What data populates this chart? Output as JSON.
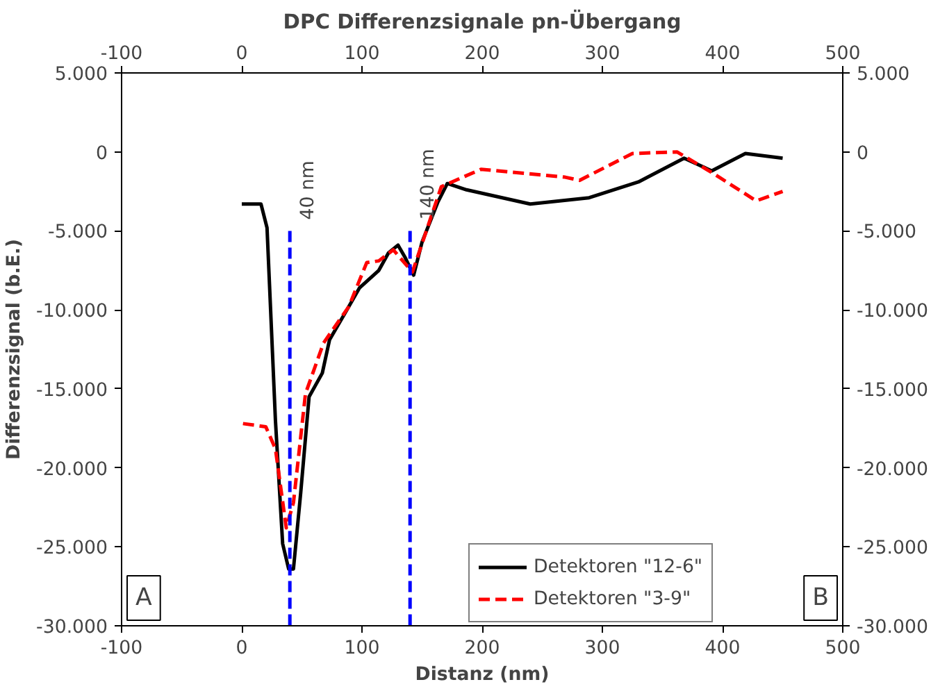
{
  "chart_data": {
    "type": "line",
    "title": "DPC Differenzsignale pn-Übergang",
    "xlabel": "Distanz (nm)",
    "ylabel": "Differenzsignal (b.E.)",
    "xlim": [
      -100,
      500
    ],
    "xticks": [
      -100,
      0,
      100,
      200,
      300,
      400,
      500
    ],
    "x2lim": [
      -100,
      500
    ],
    "x2ticks": [
      -100,
      0,
      100,
      200,
      300,
      400,
      500
    ],
    "ylim": [
      -30000,
      5000
    ],
    "yticks": [
      {
        "value": 5000,
        "label": "5.000"
      },
      {
        "value": 0,
        "label": "0"
      },
      {
        "value": -5000,
        "label": "-5.000"
      },
      {
        "value": -10000,
        "label": "-10.000"
      },
      {
        "value": -15000,
        "label": "-15.000"
      },
      {
        "value": -20000,
        "label": "-20.000"
      },
      {
        "value": -25000,
        "label": "-25.000"
      },
      {
        "value": -30000,
        "label": "-30.000"
      }
    ],
    "y2lim": [
      -30000,
      5000
    ],
    "y2ticks": [
      {
        "value": 5000,
        "label": "5.000"
      },
      {
        "value": 0,
        "label": "0"
      },
      {
        "value": -5000,
        "label": "-5.000"
      },
      {
        "value": -10000,
        "label": "-10.000"
      },
      {
        "value": -15000,
        "label": "-15.000"
      },
      {
        "value": -20000,
        "label": "-20.000"
      },
      {
        "value": -25000,
        "label": "-25.000"
      },
      {
        "value": -30000,
        "label": "-30.000"
      }
    ],
    "grid": false,
    "legend": "bottom right",
    "marker": "none",
    "series": [
      {
        "name": "Detektoren \"12-6\"",
        "color": "#000000",
        "line_style": "solid",
        "x": [
          0,
          16,
          21,
          28,
          34,
          39,
          43,
          49,
          56,
          67,
          73,
          89,
          98,
          114,
          122,
          130,
          136,
          143,
          150,
          163,
          171,
          187,
          240,
          289,
          330,
          368,
          391,
          419,
          450
        ],
        "values": [
          -3300,
          -3300,
          -4800,
          -17000,
          -24800,
          -26400,
          -26400,
          -21600,
          -15500,
          -14000,
          -11900,
          -9800,
          -8600,
          -7500,
          -6400,
          -5900,
          -6700,
          -7800,
          -5700,
          -3200,
          -2000,
          -2400,
          -3300,
          -2900,
          -1900,
          -400,
          -1200,
          -100,
          -400
        ]
      },
      {
        "name": "Detektoren \"3-9\"",
        "color": "#ff0000",
        "line_style": "dashed",
        "x": [
          1,
          20,
          28,
          37,
          43,
          53,
          68,
          89,
          104,
          114,
          126,
          142,
          154,
          166,
          199,
          269,
          281,
          325,
          362,
          391,
          428,
          450
        ],
        "values": [
          -17200,
          -17400,
          -18800,
          -23800,
          -22200,
          -15300,
          -12100,
          -9800,
          -7000,
          -6900,
          -6200,
          -7600,
          -4900,
          -2200,
          -1100,
          -1600,
          -1800,
          -100,
          0,
          -1300,
          -3100,
          -2500
        ]
      }
    ],
    "ref_lines": [
      {
        "axis": "x",
        "value": 40,
        "label": "40 nm",
        "color": "#0000ff",
        "line_style": "dashed"
      },
      {
        "axis": "x",
        "value": 140,
        "label": "140 nm",
        "color": "#0000ff",
        "line_style": "dashed"
      }
    ],
    "annotations": [
      "A",
      "B"
    ]
  }
}
